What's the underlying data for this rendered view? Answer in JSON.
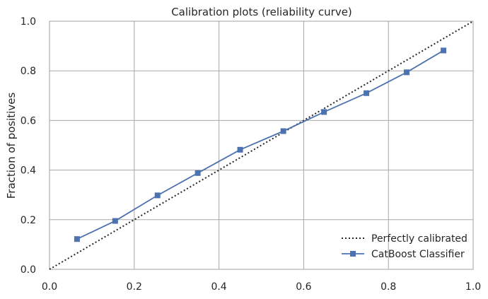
{
  "chart_data": {
    "type": "line",
    "title": "Calibration plots  (reliability curve)",
    "xlabel": "",
    "ylabel": "Fraction of positives",
    "xlim": [
      0.0,
      1.0
    ],
    "ylim": [
      0.0,
      1.0
    ],
    "grid": true,
    "x_ticks": [
      "0.0",
      "0.2",
      "0.4",
      "0.6",
      "0.8",
      "1.0"
    ],
    "y_ticks": [
      "0.0",
      "0.2",
      "0.4",
      "0.6",
      "0.8",
      "1.0"
    ],
    "legend_position": "lower-right",
    "series": [
      {
        "name": "Perfectly calibrated",
        "style": "dotted",
        "color": "#262626",
        "x": [
          0.0,
          1.0
        ],
        "y": [
          0.0,
          1.0
        ]
      },
      {
        "name": "CatBoost Classifier",
        "style": "solid-square-markers",
        "color": "#4c72b0",
        "x": [
          0.065,
          0.155,
          0.255,
          0.35,
          0.45,
          0.552,
          0.648,
          0.748,
          0.843,
          0.93
        ],
        "y": [
          0.122,
          0.195,
          0.298,
          0.388,
          0.482,
          0.557,
          0.634,
          0.71,
          0.794,
          0.882
        ]
      }
    ]
  }
}
